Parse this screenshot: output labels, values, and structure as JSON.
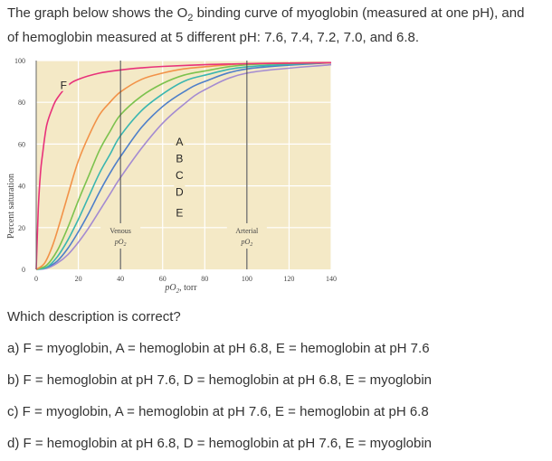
{
  "intro": {
    "line1_pre": "The graph below shows the O",
    "o2_sub": "2",
    "line1_post": " binding curve of myoglobin (measured at one pH), and",
    "line2": "of hemoglobin measured at 5 different pH: 7.6, 7.4, 7.2, 7.0, and 6.8."
  },
  "chart_data": {
    "type": "line",
    "xlabel_pre": "pO",
    "xlabel_sub": "2",
    "xlabel_post": ", torr",
    "ylabel": "Percent saturation",
    "xlim": [
      0,
      140
    ],
    "ylim": [
      0,
      100
    ],
    "x_ticks": [
      "0",
      "20",
      "40",
      "60",
      "80",
      "100",
      "120",
      "140"
    ],
    "y_ticks": [
      "0",
      "20",
      "40",
      "60",
      "80",
      "100"
    ],
    "grid": true,
    "venous_label": "Venous",
    "arterial_label": "Arterial",
    "po2_pre": "pO",
    "po2_sub": "2",
    "venous_x": 40,
    "arterial_x": 100,
    "series": [
      {
        "name": "F",
        "color": "#e8327a",
        "x": [
          0,
          1,
          2,
          3,
          5,
          8,
          10,
          15,
          20,
          30,
          40,
          50,
          60,
          80,
          100,
          140
        ],
        "y": [
          0,
          29,
          46,
          55,
          69,
          78,
          82,
          88,
          91,
          94,
          95.5,
          96.5,
          97.2,
          98,
          98.5,
          99
        ]
      },
      {
        "name": "A",
        "color": "#f29248",
        "x": [
          0,
          4,
          8,
          12,
          16,
          20,
          25,
          30,
          35,
          40,
          50,
          60,
          70,
          80,
          100,
          140
        ],
        "y": [
          0,
          3,
          12,
          25,
          39,
          52,
          64,
          74,
          80,
          85,
          91,
          94,
          96,
          97,
          98.5,
          99
        ]
      },
      {
        "name": "B",
        "color": "#7cc24e",
        "x": [
          0,
          5,
          10,
          15,
          20,
          25,
          30,
          35,
          40,
          50,
          60,
          70,
          80,
          100,
          140
        ],
        "y": [
          0,
          2,
          9,
          20,
          33,
          45,
          57,
          66,
          74,
          83,
          89,
          93,
          95,
          98,
          99
        ]
      },
      {
        "name": "C",
        "color": "#3ab6b0",
        "x": [
          0,
          5,
          10,
          15,
          20,
          25,
          30,
          35,
          40,
          50,
          60,
          70,
          80,
          100,
          140
        ],
        "y": [
          0,
          1,
          6,
          14,
          24,
          35,
          46,
          55,
          64,
          76,
          84,
          90,
          93,
          97,
          99
        ]
      },
      {
        "name": "D",
        "color": "#4e7fc9",
        "x": [
          0,
          5,
          10,
          15,
          20,
          25,
          30,
          35,
          40,
          50,
          60,
          70,
          80,
          100,
          140
        ],
        "y": [
          0,
          1,
          4,
          10,
          18,
          27,
          37,
          46,
          54,
          68,
          78,
          85,
          90,
          96,
          99
        ]
      },
      {
        "name": "E",
        "color": "#a48bd1",
        "x": [
          0,
          5,
          10,
          15,
          20,
          25,
          30,
          35,
          40,
          50,
          60,
          70,
          80,
          100,
          140
        ],
        "y": [
          0,
          0.5,
          3,
          7,
          13,
          20,
          28,
          36,
          44,
          58,
          70,
          79,
          86,
          94,
          98
        ]
      }
    ],
    "curve_labels": [
      {
        "text": "F",
        "x": 13,
        "y": 88
      },
      {
        "text": "A",
        "x": 68,
        "y": 61
      },
      {
        "text": "B",
        "x": 68,
        "y": 53
      },
      {
        "text": "C",
        "x": 68,
        "y": 45
      },
      {
        "text": "D",
        "x": 68,
        "y": 37
      },
      {
        "text": "E",
        "x": 68,
        "y": 27
      }
    ]
  },
  "question": "Which description is correct?",
  "options": [
    "a) F = myoglobin, A = hemoglobin at pH 6.8, E = hemoglobin at pH 7.6",
    "b) F = hemoglobin at pH 7.6, D = hemoglobin at pH 6.8, E = myoglobin",
    "c) F = myoglobin, A = hemoglobin at pH 7.6, E = hemoglobin at pH 6.8",
    "d) F = hemoglobin at pH 6.8, D = hemoglobin at pH 7.6, E = myoglobin"
  ]
}
